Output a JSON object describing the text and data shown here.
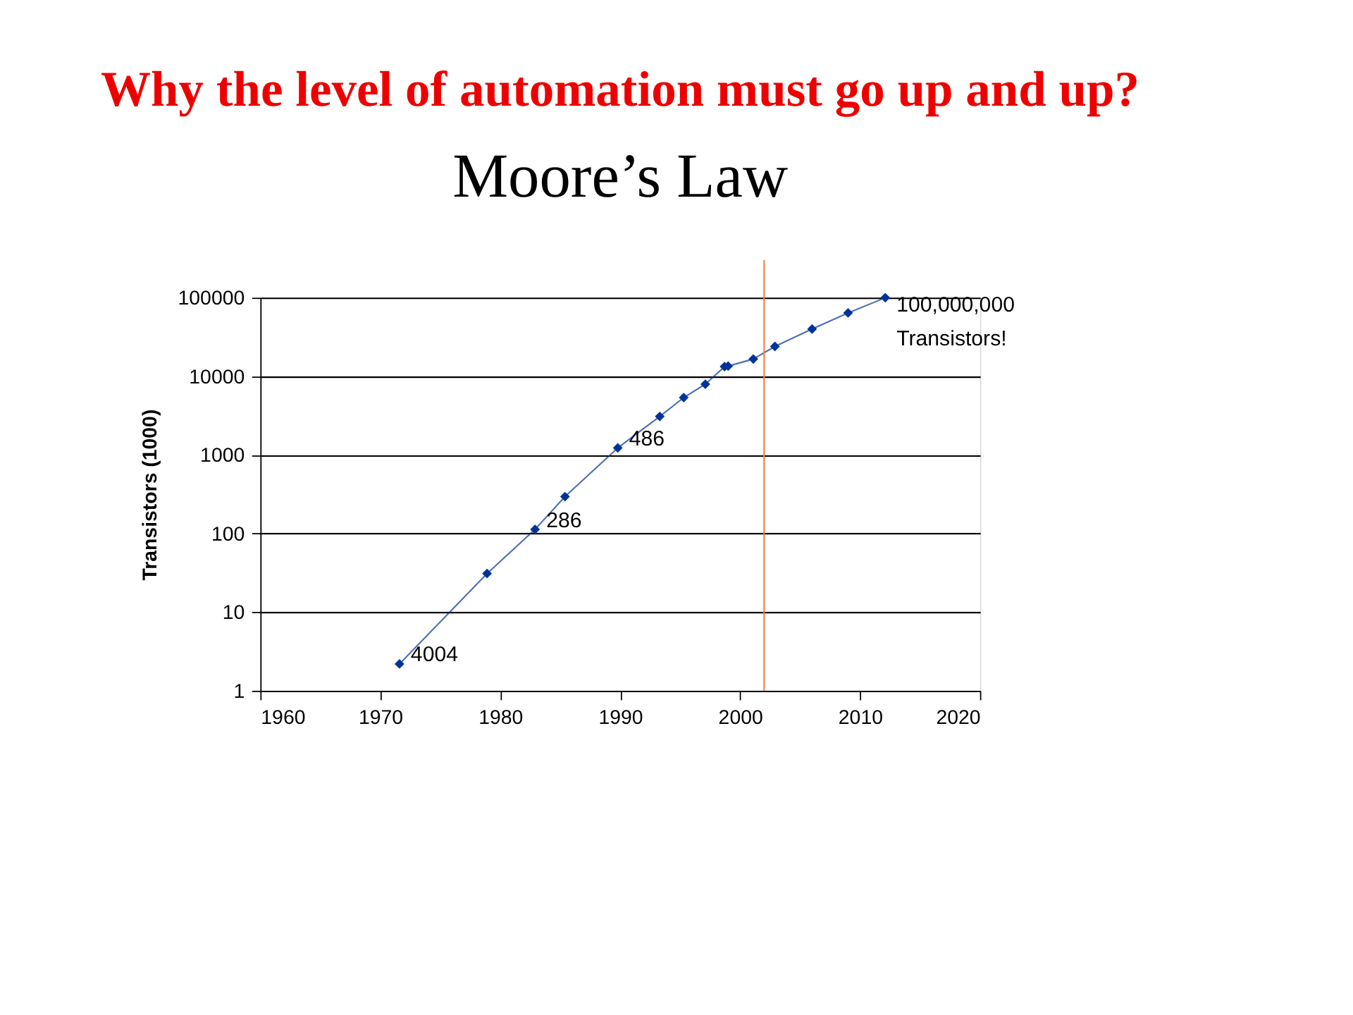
{
  "chart_data": {
    "type": "line",
    "title": "Why the level of automation must go up and up?",
    "subtitle": "Moore’s Law",
    "ylabel": "Transistors (1000)",
    "x": [
      1971.6,
      1978.9,
      1982.9,
      1985.4,
      1989.8,
      1993.3,
      1995.3,
      1997.1,
      1998.7,
      1999.0,
      2001.1,
      2002.9,
      2006.0,
      2009.0,
      2012.1
    ],
    "series": [
      {
        "color": "#003399",
        "values": [
          2.2,
          31,
          113,
          295,
          1230,
          3090,
          5370,
          7950,
          13300,
          13500,
          16600,
          24000,
          40000,
          64000,
          100000
        ]
      }
    ],
    "log": true,
    "xlim": [
      1960,
      2020
    ],
    "xticks": [
      1960,
      1970,
      1980,
      1990,
      2000,
      2010,
      2020
    ],
    "ylim": [
      1,
      100000
    ],
    "yticks": [
      1,
      10,
      100,
      1000,
      10000,
      100000
    ],
    "grid": "y",
    "marker": "diamond",
    "line_style": "solid",
    "ref_lines": [
      {
        "axis": "x",
        "value": 2002,
        "color": "#f08040"
      }
    ],
    "annotations": [
      {
        "text": "4004",
        "x": 1971.6,
        "y": 2.2
      },
      {
        "text": "286",
        "x": 1982.9,
        "y": 113
      },
      {
        "text": "486",
        "x": 1989.8,
        "y": 1230
      },
      {
        "text": "100,000,000\nTransistors!",
        "x": 2012.1,
        "y": 100000
      }
    ]
  }
}
